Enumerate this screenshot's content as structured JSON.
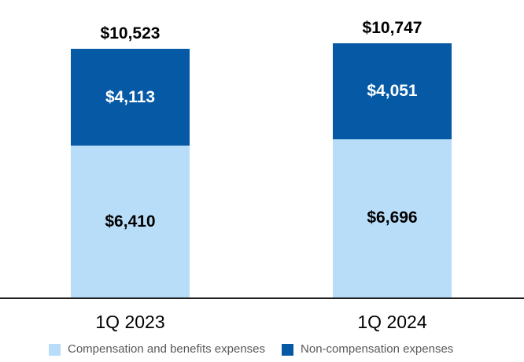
{
  "chart_data": {
    "type": "bar",
    "stacked": true,
    "title": "",
    "xlabel": "",
    "ylabel": "",
    "grid": false,
    "legend_position": "bottom",
    "categories": [
      "1Q 2023",
      "1Q 2024"
    ],
    "series": [
      {
        "name": "Compensation and benefits expenses",
        "color": "#B8DDF9",
        "label_color": "#000000",
        "values": [
          6410,
          6696
        ],
        "labels": [
          "$6,410",
          "$6,696"
        ]
      },
      {
        "name": "Non-compensation expenses",
        "color": "#0659A5",
        "label_color": "#FFFFFF",
        "values": [
          4113,
          4051
        ],
        "labels": [
          "$4,113",
          "$4,051"
        ]
      }
    ],
    "totals": {
      "values": [
        10523,
        10747
      ],
      "labels": [
        "$10,523",
        "$10,747"
      ]
    },
    "ylim": [
      0,
      11300
    ],
    "axis_line_color": "#1f1f1f",
    "legend_text_color": "#595959"
  }
}
